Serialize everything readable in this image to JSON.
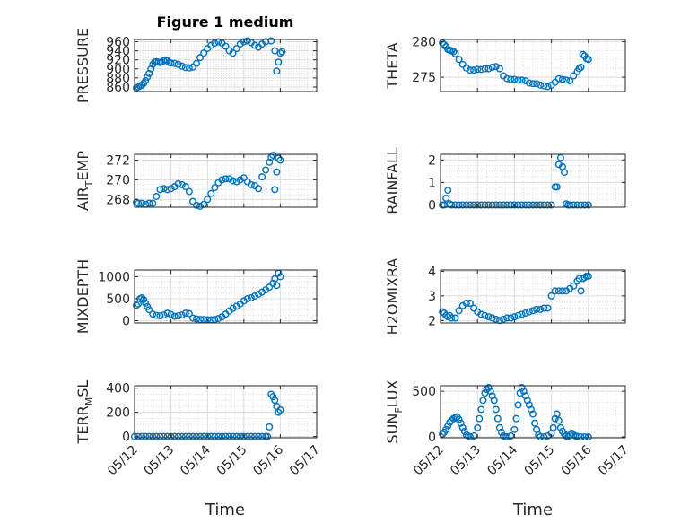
{
  "figure": {
    "title": "Figure 1 medium",
    "xlabel": "Time",
    "x_ticks": [
      "05/12",
      "05/13",
      "05/14",
      "05/15",
      "05/16",
      "05/17"
    ],
    "marker_color": "#0072BD",
    "grid": "on (major and minor)"
  },
  "chart_data": [
    {
      "type": "scatter",
      "ylabel": {
        "base": "PRESSURE",
        "sub": "",
        "rest": ""
      },
      "ylim": [
        850,
        965
      ],
      "yticks": [
        "860",
        "880",
        "900",
        "920",
        "940",
        "960"
      ],
      "ytick_values": [
        860,
        880,
        900,
        920,
        940,
        960
      ],
      "x_days": [
        0.05,
        0.1,
        0.15,
        0.2,
        0.25,
        0.3,
        0.35,
        0.4,
        0.45,
        0.5,
        0.55,
        0.6,
        0.65,
        0.7,
        0.75,
        0.8,
        0.85,
        0.9,
        0.95,
        1.0,
        1.1,
        1.2,
        1.3,
        1.4,
        1.5,
        1.6,
        1.7,
        1.8,
        1.9,
        2.0,
        2.1,
        2.2,
        2.3,
        2.4,
        2.5,
        2.6,
        2.7,
        2.8,
        2.9,
        3.0,
        3.1,
        3.2,
        3.3,
        3.4,
        3.5,
        3.6,
        3.75,
        3.85,
        3.9,
        3.95,
        4.0,
        4.05
      ],
      "y": [
        858,
        860,
        862,
        864,
        868,
        874,
        882,
        890,
        900,
        910,
        915,
        916,
        915,
        914,
        915,
        918,
        920,
        918,
        914,
        913,
        912,
        910,
        906,
        903,
        902,
        904,
        912,
        925,
        935,
        945,
        952,
        957,
        960,
        957,
        950,
        940,
        935,
        945,
        955,
        960,
        962,
        958,
        952,
        948,
        955,
        960,
        962,
        940,
        895,
        915,
        935,
        938
      ]
    },
    {
      "type": "scatter",
      "ylabel": {
        "base": "THETA",
        "sub": "",
        "rest": ""
      },
      "ylim": [
        273,
        280.3
      ],
      "yticks": [
        "275",
        "280"
      ],
      "ytick_values": [
        275,
        280
      ],
      "x_days": [
        0.05,
        0.1,
        0.15,
        0.2,
        0.25,
        0.3,
        0.35,
        0.4,
        0.5,
        0.6,
        0.7,
        0.8,
        0.9,
        1.0,
        1.1,
        1.2,
        1.3,
        1.4,
        1.5,
        1.6,
        1.7,
        1.8,
        1.9,
        2.0,
        2.1,
        2.2,
        2.3,
        2.4,
        2.5,
        2.6,
        2.7,
        2.8,
        2.9,
        3.0,
        3.1,
        3.2,
        3.3,
        3.4,
        3.5,
        3.6,
        3.7,
        3.75,
        3.8,
        3.85,
        3.9,
        3.95,
        4.0
      ],
      "y": [
        279.8,
        279.6,
        279.3,
        278.9,
        278.8,
        278.7,
        278.6,
        278.3,
        277.5,
        276.8,
        276.3,
        276.0,
        276.0,
        276.1,
        276.1,
        276.2,
        276.2,
        276.4,
        276.5,
        276.2,
        275.2,
        274.8,
        274.7,
        274.7,
        274.6,
        274.6,
        274.5,
        274.2,
        274.1,
        274.1,
        273.9,
        273.8,
        273.7,
        273.9,
        274.3,
        274.8,
        274.7,
        274.6,
        274.5,
        275.2,
        275.8,
        276.2,
        276.4,
        278.2,
        278.0,
        277.6,
        277.5
      ]
    },
    {
      "type": "scatter",
      "ylabel": {
        "base": "AIR",
        "sub": "T",
        "rest": "EMP"
      },
      "ylim": [
        267.2,
        272.6
      ],
      "yticks": [
        "268",
        "270",
        "272"
      ],
      "ytick_values": [
        268,
        270,
        272
      ],
      "x_days": [
        0.05,
        0.1,
        0.2,
        0.3,
        0.4,
        0.5,
        0.6,
        0.7,
        0.8,
        0.9,
        1.0,
        1.1,
        1.2,
        1.3,
        1.4,
        1.5,
        1.6,
        1.7,
        1.8,
        1.9,
        2.0,
        2.1,
        2.2,
        2.3,
        2.4,
        2.5,
        2.6,
        2.7,
        2.8,
        2.9,
        3.0,
        3.1,
        3.2,
        3.3,
        3.4,
        3.5,
        3.6,
        3.7,
        3.75,
        3.8,
        3.85,
        3.9,
        3.95,
        4.0
      ],
      "y": [
        267.7,
        267.6,
        267.6,
        267.5,
        267.6,
        267.6,
        268.3,
        269.0,
        269.1,
        269.0,
        269.1,
        269.3,
        269.6,
        269.5,
        269.3,
        268.8,
        267.8,
        267.4,
        267.3,
        267.5,
        268.0,
        268.6,
        269.2,
        269.7,
        270.0,
        270.1,
        270.1,
        269.9,
        269.8,
        270.0,
        270.2,
        269.8,
        269.5,
        269.4,
        269.1,
        270.3,
        271.0,
        271.8,
        272.3,
        272.5,
        269.0,
        270.8,
        272.2,
        272.0
      ]
    },
    {
      "type": "scatter",
      "ylabel": {
        "base": "RAINFALL",
        "sub": "",
        "rest": ""
      },
      "ylim": [
        -0.1,
        2.25
      ],
      "yticks": [
        "0",
        "1",
        "2"
      ],
      "ytick_values": [
        0,
        1,
        2
      ],
      "x_days": [
        0.05,
        0.1,
        0.15,
        0.2,
        0.25,
        0.3,
        0.4,
        0.5,
        0.6,
        0.7,
        0.8,
        0.9,
        1.0,
        1.1,
        1.2,
        1.3,
        1.4,
        1.5,
        1.6,
        1.7,
        1.8,
        1.9,
        2.0,
        2.1,
        2.2,
        2.3,
        2.4,
        2.5,
        2.6,
        2.7,
        2.8,
        2.9,
        3.0,
        3.1,
        3.15,
        3.2,
        3.25,
        3.3,
        3.35,
        3.4,
        3.45,
        3.5,
        3.6,
        3.7,
        3.8,
        3.9,
        4.0
      ],
      "y": [
        0,
        0,
        0.3,
        0.65,
        0.05,
        0,
        0,
        0,
        0,
        0,
        0,
        0,
        0,
        0,
        0,
        0,
        0,
        0,
        0,
        0,
        0,
        0,
        0,
        0,
        0,
        0,
        0,
        0,
        0,
        0,
        0,
        0,
        0,
        0.8,
        0.8,
        1.8,
        2.1,
        1.7,
        1.45,
        0.05,
        0,
        0,
        0,
        0,
        0,
        0,
        0
      ]
    },
    {
      "type": "scatter",
      "ylabel": {
        "base": "MIXDEPTH",
        "sub": "",
        "rest": ""
      },
      "ylim": [
        -50,
        1150
      ],
      "yticks": [
        "0",
        "500",
        "1000"
      ],
      "ytick_values": [
        0,
        500,
        1000
      ],
      "x_days": [
        0.05,
        0.1,
        0.15,
        0.2,
        0.25,
        0.3,
        0.35,
        0.4,
        0.5,
        0.6,
        0.7,
        0.8,
        0.9,
        1.0,
        1.1,
        1.2,
        1.3,
        1.4,
        1.5,
        1.6,
        1.7,
        1.8,
        1.9,
        2.0,
        2.1,
        2.2,
        2.3,
        2.4,
        2.5,
        2.6,
        2.7,
        2.8,
        2.9,
        3.0,
        3.1,
        3.2,
        3.3,
        3.4,
        3.5,
        3.6,
        3.7,
        3.8,
        3.85,
        3.9,
        3.95,
        4.0
      ],
      "y": [
        350,
        380,
        500,
        520,
        480,
        400,
        320,
        250,
        150,
        120,
        110,
        130,
        170,
        140,
        100,
        110,
        130,
        170,
        160,
        60,
        40,
        30,
        30,
        20,
        20,
        30,
        50,
        90,
        150,
        220,
        280,
        330,
        380,
        450,
        500,
        520,
        560,
        600,
        650,
        700,
        760,
        850,
        950,
        800,
        1080,
        1000
      ]
    },
    {
      "type": "scatter",
      "ylabel": {
        "base": "H2OMIXRA",
        "sub": "",
        "rest": ""
      },
      "ylim": [
        1.9,
        4.05
      ],
      "yticks": [
        "2",
        "3",
        "4"
      ],
      "ytick_values": [
        2,
        3,
        4
      ],
      "x_days": [
        0.05,
        0.1,
        0.15,
        0.2,
        0.25,
        0.3,
        0.4,
        0.5,
        0.6,
        0.7,
        0.8,
        0.9,
        1.0,
        1.1,
        1.2,
        1.3,
        1.4,
        1.5,
        1.6,
        1.7,
        1.8,
        1.9,
        2.0,
        2.1,
        2.2,
        2.3,
        2.4,
        2.5,
        2.6,
        2.7,
        2.8,
        2.9,
        3.0,
        3.1,
        3.2,
        3.3,
        3.4,
        3.5,
        3.6,
        3.7,
        3.75,
        3.8,
        3.85,
        3.9,
        3.95,
        4.0
      ],
      "y": [
        2.35,
        2.3,
        2.2,
        2.15,
        2.2,
        2.1,
        2.1,
        2.4,
        2.6,
        2.7,
        2.7,
        2.5,
        2.35,
        2.25,
        2.2,
        2.15,
        2.1,
        2.05,
        2.0,
        2.05,
        2.1,
        2.1,
        2.15,
        2.2,
        2.25,
        2.3,
        2.35,
        2.4,
        2.45,
        2.45,
        2.5,
        2.5,
        3.0,
        3.2,
        3.2,
        3.2,
        3.2,
        3.3,
        3.4,
        3.6,
        3.7,
        3.2,
        3.7,
        3.75,
        3.8,
        3.8
      ]
    },
    {
      "type": "scatter",
      "ylabel": {
        "base": "TERR",
        "sub": "M",
        "rest": "SL"
      },
      "ylim": [
        -10,
        420
      ],
      "yticks": [
        "0",
        "200",
        "400"
      ],
      "ytick_values": [
        0,
        200,
        400
      ],
      "x_days": [
        0.0,
        0.1,
        0.2,
        0.3,
        0.4,
        0.5,
        0.6,
        0.7,
        0.8,
        0.9,
        1.0,
        1.1,
        1.2,
        1.3,
        1.4,
        1.5,
        1.6,
        1.7,
        1.8,
        1.9,
        2.0,
        2.1,
        2.2,
        2.3,
        2.4,
        2.5,
        2.6,
        2.7,
        2.8,
        2.9,
        3.0,
        3.1,
        3.2,
        3.3,
        3.4,
        3.5,
        3.6,
        3.65,
        3.7,
        3.75,
        3.8,
        3.85,
        3.9,
        3.95,
        4.0
      ],
      "y": [
        0,
        0,
        0,
        0,
        0,
        0,
        0,
        0,
        0,
        0,
        0,
        0,
        0,
        0,
        0,
        0,
        0,
        0,
        0,
        0,
        0,
        0,
        0,
        0,
        0,
        0,
        0,
        0,
        0,
        0,
        0,
        0,
        0,
        0,
        0,
        0,
        0,
        0,
        80,
        350,
        330,
        300,
        250,
        200,
        220
      ]
    },
    {
      "type": "scatter",
      "ylabel": {
        "base": "SUN",
        "sub": "F",
        "rest": "LUX"
      },
      "ylim": [
        -10,
        560
      ],
      "yticks": [
        "0",
        "500"
      ],
      "ytick_values": [
        0,
        500
      ],
      "x_days": [
        0.05,
        0.1,
        0.15,
        0.2,
        0.25,
        0.3,
        0.35,
        0.4,
        0.45,
        0.5,
        0.55,
        0.6,
        0.65,
        0.7,
        0.75,
        0.8,
        0.9,
        1.0,
        1.05,
        1.1,
        1.15,
        1.2,
        1.25,
        1.3,
        1.35,
        1.4,
        1.45,
        1.5,
        1.55,
        1.6,
        1.65,
        1.7,
        1.75,
        1.8,
        1.9,
        2.0,
        2.05,
        2.1,
        2.15,
        2.2,
        2.25,
        2.3,
        2.35,
        2.4,
        2.45,
        2.5,
        2.55,
        2.6,
        2.65,
        2.7,
        2.8,
        2.9,
        3.0,
        3.05,
        3.1,
        3.15,
        3.2,
        3.25,
        3.3,
        3.35,
        3.4,
        3.45,
        3.5,
        3.55,
        3.6,
        3.65,
        3.7,
        3.8,
        3.9,
        4.0
      ],
      "y": [
        30,
        50,
        80,
        120,
        160,
        180,
        200,
        210,
        220,
        190,
        150,
        100,
        60,
        20,
        10,
        0,
        10,
        100,
        200,
        300,
        400,
        480,
        520,
        540,
        500,
        450,
        400,
        300,
        200,
        100,
        50,
        10,
        0,
        0,
        10,
        80,
        200,
        350,
        480,
        540,
        500,
        450,
        400,
        350,
        300,
        250,
        150,
        80,
        20,
        0,
        0,
        10,
        40,
        100,
        200,
        250,
        180,
        100,
        60,
        30,
        10,
        5,
        20,
        40,
        20,
        10,
        5,
        0,
        0,
        0
      ]
    }
  ]
}
